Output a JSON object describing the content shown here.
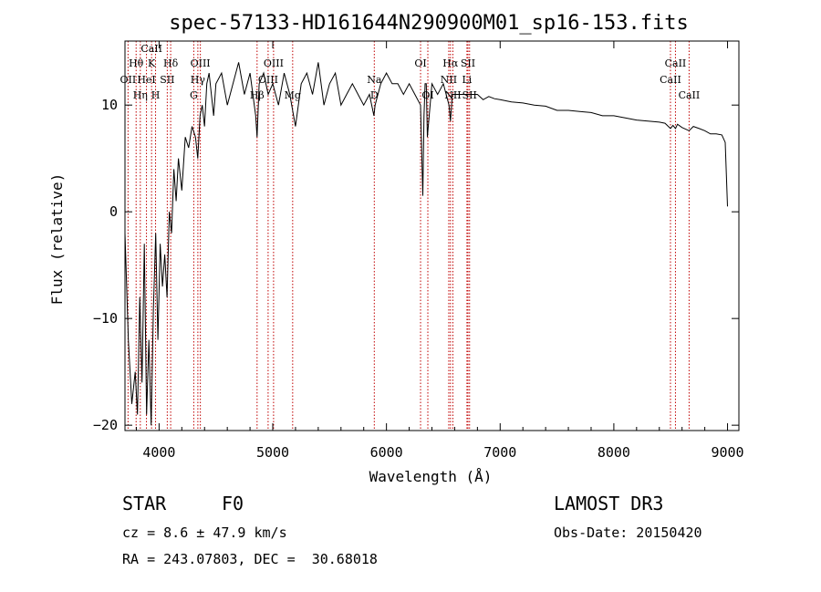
{
  "chart_data": {
    "type": "line",
    "title": "spec-57133-HD161644N290900M01_sp16-153.fits",
    "xlabel": "Wavelength (Å)",
    "ylabel": "Flux (relative)",
    "xlim": [
      3700,
      9100
    ],
    "ylim": [
      -20.5,
      16
    ],
    "xticks": [
      4000,
      5000,
      6000,
      7000,
      8000,
      9000
    ],
    "yticks": [
      -20,
      -10,
      0,
      10
    ],
    "x_tick_labels": [
      "4000",
      "5000",
      "6000",
      "7000",
      "8000",
      "9000"
    ],
    "y_tick_labels": [
      "−20",
      "−10",
      "0",
      "10"
    ],
    "series": [
      {
        "name": "flux",
        "x": [
          3700,
          3730,
          3760,
          3790,
          3810,
          3830,
          3850,
          3870,
          3890,
          3910,
          3930,
          3950,
          3970,
          3990,
          4010,
          4030,
          4050,
          4070,
          4090,
          4110,
          4130,
          4150,
          4170,
          4200,
          4230,
          4260,
          4290,
          4320,
          4340,
          4360,
          4380,
          4400,
          4420,
          4440,
          4460,
          4480,
          4500,
          4550,
          4600,
          4650,
          4700,
          4750,
          4800,
          4850,
          4862,
          4880,
          4920,
          4960,
          5000,
          5050,
          5100,
          5150,
          5200,
          5250,
          5300,
          5350,
          5400,
          5450,
          5500,
          5550,
          5600,
          5650,
          5700,
          5750,
          5800,
          5850,
          5890,
          5900,
          5950,
          6000,
          6050,
          6100,
          6150,
          6200,
          6250,
          6300,
          6320,
          6330,
          6340,
          6350,
          6360,
          6400,
          6450,
          6500,
          6550,
          6563,
          6580,
          6600,
          6650,
          6700,
          6750,
          6800,
          6850,
          6900,
          6950,
          7000,
          7100,
          7200,
          7300,
          7400,
          7500,
          7600,
          7700,
          7800,
          7900,
          8000,
          8100,
          8200,
          8300,
          8400,
          8450,
          8498,
          8520,
          8542,
          8560,
          8600,
          8662,
          8700,
          8750,
          8800,
          8850,
          8900,
          8950,
          8980,
          9000
        ],
        "y": [
          -2,
          -12,
          -18,
          -15,
          -19,
          -8,
          -16,
          -3,
          -19,
          -12,
          -20,
          -9,
          -2,
          -12,
          -3,
          -7,
          -4,
          -8,
          0,
          -2,
          4,
          1,
          5,
          2,
          7,
          6,
          8,
          7,
          5,
          9,
          10,
          8,
          12,
          13,
          11,
          9,
          12,
          13,
          10,
          12,
          14,
          11,
          13,
          9,
          7,
          12,
          13,
          11,
          12,
          10,
          13,
          11,
          8,
          12,
          13,
          11,
          14,
          10,
          12,
          13,
          10,
          11,
          12,
          11,
          10,
          11,
          9,
          10,
          12,
          13,
          12,
          12,
          11,
          12,
          11,
          10,
          1.5,
          9,
          12,
          12,
          7,
          12,
          11,
          12,
          10,
          8.5,
          11,
          11,
          11,
          11,
          11,
          11,
          10.5,
          10.8,
          10.6,
          10.5,
          10.3,
          10.2,
          10,
          9.9,
          9.5,
          9.5,
          9.4,
          9.3,
          9,
          9,
          8.8,
          8.6,
          8.5,
          8.4,
          8.3,
          7.8,
          8.1,
          7.8,
          8.2,
          7.9,
          7.6,
          8,
          7.8,
          7.6,
          7.3,
          7.3,
          7.2,
          6.5,
          0.5
        ]
      }
    ],
    "line_markers": [
      {
        "label": "Hθ",
        "wavelength": 3798,
        "row": 1
      },
      {
        "label": "OII",
        "wavelength": 3727,
        "row": 2
      },
      {
        "label": "CaII",
        "wavelength": 3934,
        "row": 0
      },
      {
        "label": "K",
        "wavelength": 3934,
        "row": 1
      },
      {
        "label": "Hη",
        "wavelength": 3835,
        "row": 3
      },
      {
        "label": "HeI",
        "wavelength": 3889,
        "row": 2
      },
      {
        "label": "H",
        "wavelength": 3969,
        "row": 3
      },
      {
        "label": "Hδ",
        "wavelength": 4102,
        "row": 1
      },
      {
        "label": "SII",
        "wavelength": 4072,
        "row": 2
      },
      {
        "label": "OIII",
        "wavelength": 4363,
        "row": 1
      },
      {
        "label": "Hγ",
        "wavelength": 4341,
        "row": 2
      },
      {
        "label": "G",
        "wavelength": 4305,
        "row": 3
      },
      {
        "label": "OIII",
        "wavelength": 5007,
        "row": 1
      },
      {
        "label": "OIII",
        "wavelength": 4959,
        "row": 2
      },
      {
        "label": "Hβ",
        "wavelength": 4862,
        "row": 3
      },
      {
        "label": "Mg",
        "wavelength": 5175,
        "row": 3
      },
      {
        "label": "Na",
        "wavelength": 5893,
        "row": 2
      },
      {
        "label": "D",
        "wavelength": 5893,
        "row": 3
      },
      {
        "label": "OI",
        "wavelength": 6300,
        "row": 1
      },
      {
        "label": "OI",
        "wavelength": 6364,
        "row": 3
      },
      {
        "label": "Hα",
        "wavelength": 6563,
        "row": 1
      },
      {
        "label": "NII",
        "wavelength": 6548,
        "row": 2
      },
      {
        "label": "NII",
        "wavelength": 6584,
        "row": 3
      },
      {
        "label": "SII",
        "wavelength": 6717,
        "row": 1
      },
      {
        "label": "Li",
        "wavelength": 6708,
        "row": 2
      },
      {
        "label": "SII",
        "wavelength": 6731,
        "row": 3
      },
      {
        "label": "CaII",
        "wavelength": 8498,
        "row": 2
      },
      {
        "label": "CaII",
        "wavelength": 8542,
        "row": 1
      },
      {
        "label": "CaII",
        "wavelength": 8662,
        "row": 3
      }
    ]
  },
  "info": {
    "object_class": "STAR",
    "subclass": "F0",
    "survey": "LAMOST DR3",
    "redshift": "cz = 8.6 ± 47.9 km/s",
    "obs_date": "Obs-Date: 20150420",
    "coords": "RA = 243.07803, DEC =  30.68018"
  },
  "colors": {
    "marker": "#c00000",
    "line": "#000000",
    "axis": "#000000"
  }
}
